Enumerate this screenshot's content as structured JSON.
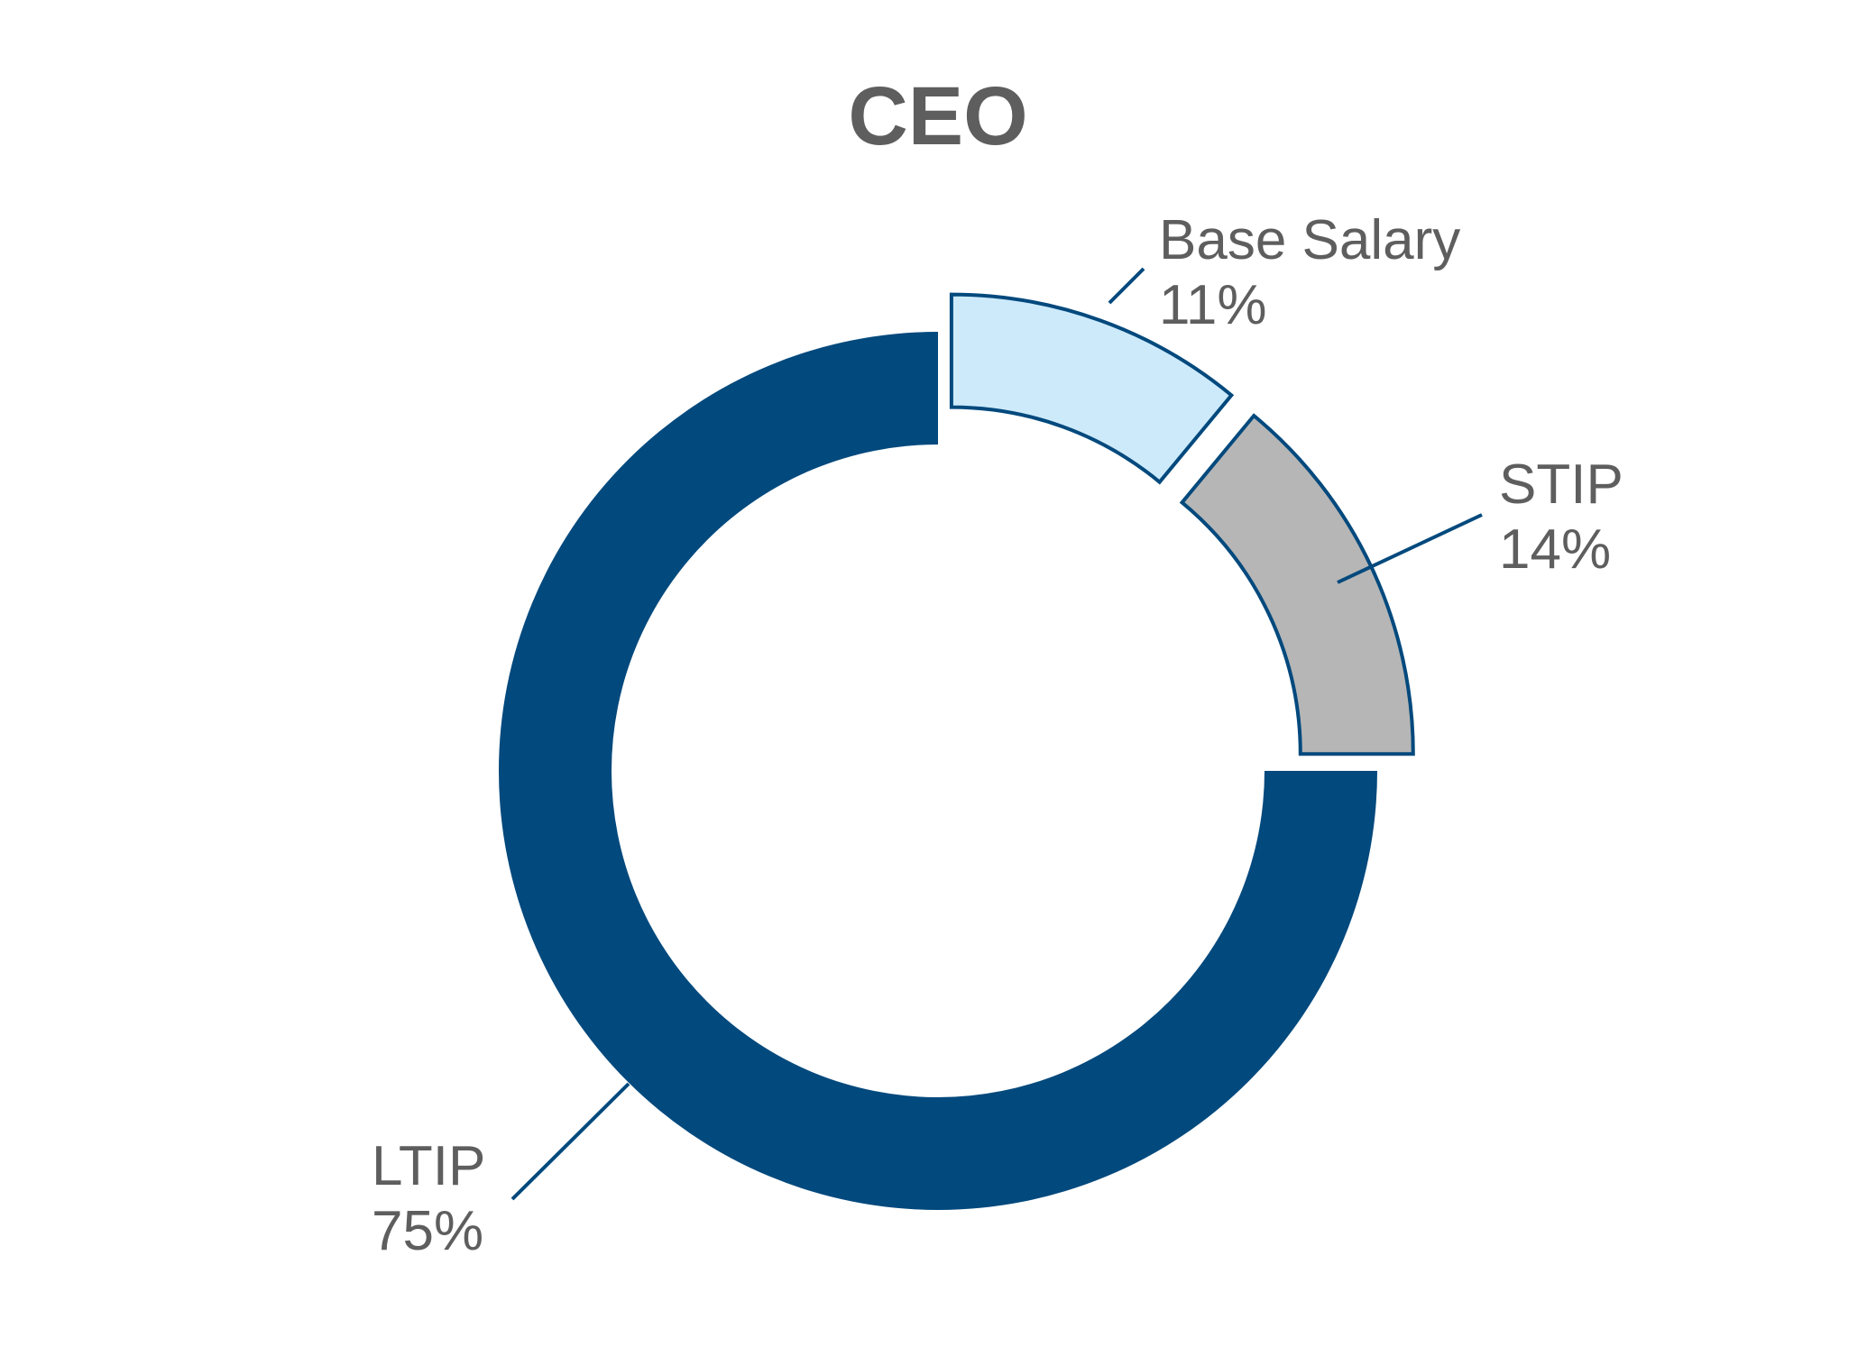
{
  "chart_data": {
    "type": "pie",
    "donut": true,
    "title": "CEO",
    "start": "top",
    "direction": "clockwise",
    "slices": [
      {
        "label": "Base Salary",
        "value": 11,
        "value_label": "11%",
        "color": "#cdeafb",
        "exploded": true
      },
      {
        "label": "STIP",
        "value": 14,
        "value_label": "14%",
        "color": "#b6b6b6",
        "exploded": true
      },
      {
        "label": "LTIP",
        "value": 75,
        "value_label": "75%",
        "color": "#02497d",
        "exploded": false
      }
    ],
    "outline_color": "#02497d",
    "text_color": "#5e5e5e",
    "leader_color": "#02497d"
  }
}
